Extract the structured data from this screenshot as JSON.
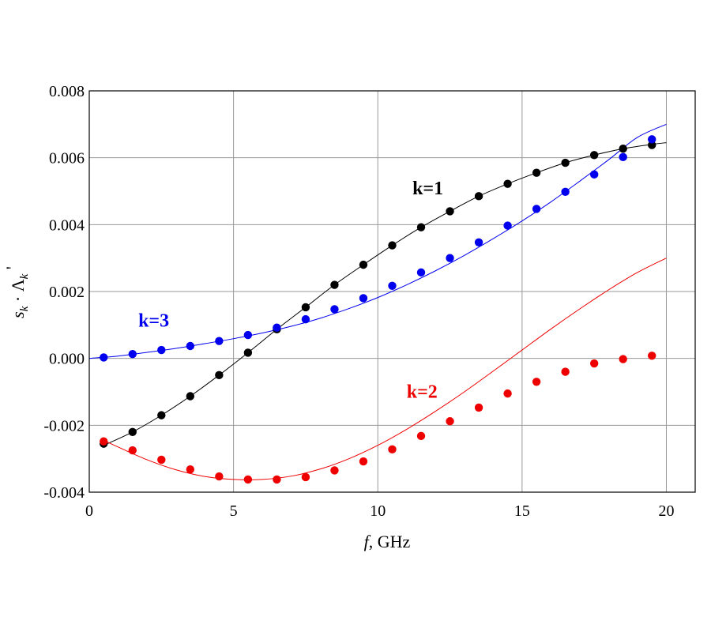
{
  "chart_data": {
    "type": "scatter",
    "xlabel": {
      "italic": "f",
      "rest": ", GHz"
    },
    "ylabel": {
      "s": "s",
      "sub1": "k",
      "dot": " · ",
      "lambda": "Λ",
      "sub2": "k",
      "prime": " '"
    },
    "xlim": [
      0,
      21
    ],
    "ylim": [
      -0.004,
      0.008
    ],
    "grid": true,
    "x_ticks": [
      0,
      5,
      10,
      15,
      20
    ],
    "x_tick_labels": [
      "0",
      "5",
      "10",
      "15",
      "20"
    ],
    "y_ticks": [
      -0.004,
      -0.002,
      0.0,
      0.002,
      0.004,
      0.006,
      0.008
    ],
    "y_tick_labels": [
      "-0.004",
      "-0.002",
      "0.000",
      "0.002",
      "0.004",
      "0.006",
      "0.008"
    ],
    "series": [
      {
        "name": "k=1",
        "color": "#000000",
        "label_at": [
          11.2,
          0.0049
        ],
        "points_x": [
          0.5,
          1.5,
          2.5,
          3.5,
          4.5,
          5.5,
          6.5,
          7.5,
          8.5,
          9.5,
          10.5,
          11.5,
          12.5,
          13.5,
          14.5,
          15.5,
          16.5,
          17.5,
          18.5,
          19.5
        ],
        "points_y": [
          -0.00255,
          -0.0022,
          -0.0017,
          -0.00113,
          -0.0005,
          0.00017,
          0.00087,
          0.00153,
          0.0022,
          0.0028,
          0.00338,
          0.00392,
          0.0044,
          0.00485,
          0.00522,
          0.00555,
          0.00585,
          0.00608,
          0.00627,
          0.00638
        ],
        "curve_x": [
          0.5,
          1.5,
          2.5,
          3.5,
          4.5,
          5.5,
          6.5,
          7.5,
          8.5,
          9.5,
          10.5,
          11.5,
          12.5,
          13.5,
          14.5,
          15.5,
          16.5,
          17.5,
          18.5,
          19.5,
          20.0
        ],
        "curve_y": [
          -0.0026,
          -0.0022,
          -0.0017,
          -0.00113,
          -0.0005,
          0.00017,
          0.00087,
          0.00153,
          0.0022,
          0.0028,
          0.00338,
          0.00392,
          0.0044,
          0.00485,
          0.00522,
          0.00555,
          0.00585,
          0.00608,
          0.00627,
          0.0064,
          0.00645
        ]
      },
      {
        "name": "k=3",
        "color": "#0000ee",
        "label_at": [
          1.7,
          0.00095
        ],
        "points_x": [
          0.5,
          1.5,
          2.5,
          3.5,
          4.5,
          5.5,
          6.5,
          7.5,
          8.5,
          9.5,
          10.5,
          11.5,
          12.5,
          13.5,
          14.5,
          15.5,
          16.5,
          17.5,
          18.5,
          19.5
        ],
        "points_y": [
          3e-05,
          0.00013,
          0.00025,
          0.00037,
          0.00052,
          0.0007,
          0.00092,
          0.00117,
          0.00147,
          0.0018,
          0.00217,
          0.00257,
          0.003,
          0.00347,
          0.00397,
          0.00447,
          0.00498,
          0.0055,
          0.00602,
          0.00655
        ],
        "curve_x": [
          0.0,
          1.0,
          2.0,
          3.0,
          4.0,
          5.0,
          6.0,
          7.0,
          8.0,
          9.0,
          10.0,
          11.0,
          12.0,
          13.0,
          14.0,
          15.0,
          16.0,
          17.0,
          18.0,
          19.0,
          20.0
        ],
        "curve_y": [
          0.0,
          7e-05,
          0.00018,
          0.0003,
          0.00044,
          0.00059,
          0.00076,
          0.00096,
          0.0012,
          0.00149,
          0.00182,
          0.0022,
          0.00262,
          0.00308,
          0.00358,
          0.00411,
          0.00468,
          0.0053,
          0.00594,
          0.00661,
          0.007
        ]
      },
      {
        "name": "k=2",
        "color": "#ee0000",
        "label_at": [
          11.0,
          -0.00118
        ],
        "points_x": [
          0.5,
          1.5,
          2.5,
          3.5,
          4.5,
          5.5,
          6.5,
          7.5,
          8.5,
          9.5,
          10.5,
          11.5,
          12.5,
          13.5,
          14.5,
          15.5,
          16.5,
          17.5,
          18.5,
          19.5
        ],
        "points_y": [
          -0.00248,
          -0.00275,
          -0.00303,
          -0.00332,
          -0.00353,
          -0.00362,
          -0.00362,
          -0.00355,
          -0.00335,
          -0.00308,
          -0.00272,
          -0.00232,
          -0.00188,
          -0.00147,
          -0.00105,
          -0.0007,
          -0.0004,
          -0.00015,
          -2e-05,
          8e-05
        ],
        "curve_x": [
          0.5,
          1.0,
          2.0,
          3.0,
          4.0,
          5.0,
          6.0,
          7.0,
          8.0,
          9.0,
          10.0,
          11.0,
          12.0,
          13.0,
          14.0,
          15.0,
          16.0,
          17.0,
          18.0,
          19.0,
          20.0
        ],
        "curve_y": [
          -0.00245,
          -0.00265,
          -0.00303,
          -0.00333,
          -0.00353,
          -0.00362,
          -0.00362,
          -0.00352,
          -0.00331,
          -0.003,
          -0.0026,
          -0.00212,
          -0.00158,
          -0.001,
          -0.00038,
          0.00025,
          0.00088,
          0.00148,
          0.00205,
          0.00257,
          0.003
        ]
      }
    ]
  }
}
